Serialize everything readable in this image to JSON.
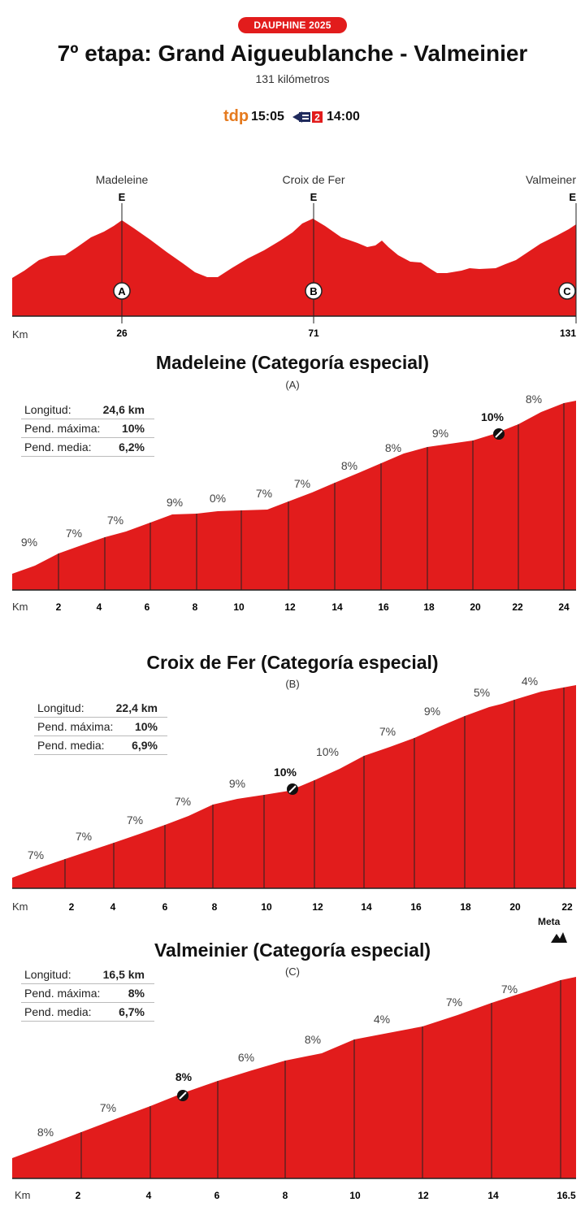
{
  "header": {
    "badge": "DAUPHINE 2025",
    "title": "7º etapa: Grand Aigueublanche - Valmeinier",
    "subtitle": "131 kilómetros",
    "tv": [
      {
        "channel": "tdp",
        "time": "15:05"
      },
      {
        "channel": "France 2",
        "badge_number": "2",
        "time": "14:00"
      }
    ]
  },
  "colors": {
    "fill": "#e21c1c",
    "accent": "#e57a1e",
    "dark": "#1f2a5c"
  },
  "overview": {
    "km_label": "Km",
    "climbs": [
      {
        "name": "Madeleine",
        "category": "E",
        "marker": "A",
        "km": "26"
      },
      {
        "name": "Croix de Fer",
        "category": "E",
        "marker": "B",
        "km": "71"
      },
      {
        "name": "Valmeiner",
        "category": "E",
        "marker": "C",
        "km": "131"
      }
    ]
  },
  "climbs": [
    {
      "title": "Madeleine (Categoría especial)",
      "letter": "(A)",
      "stats": [
        {
          "label": "Longitud:",
          "value": "24,6 km"
        },
        {
          "label": "Pend. máxima:",
          "value": "10%"
        },
        {
          "label": "Pend. media:",
          "value": "6,2%"
        }
      ],
      "km_label": "Km",
      "ticks": [
        "2",
        "4",
        "6",
        "8",
        "10",
        "12",
        "14",
        "16",
        "18",
        "20",
        "22",
        "24"
      ],
      "gradients": [
        "9%",
        "7%",
        "7%",
        "9%",
        "0%",
        "7%",
        "7%",
        "8%",
        "8%",
        "9%",
        "10%",
        "8%"
      ]
    },
    {
      "title": "Croix de Fer (Categoría especial)",
      "letter": "(B)",
      "stats": [
        {
          "label": "Longitud:",
          "value": "22,4 km"
        },
        {
          "label": "Pend. máxima:",
          "value": "10%"
        },
        {
          "label": "Pend. media:",
          "value": "6,9%"
        }
      ],
      "km_label": "Km",
      "ticks": [
        "2",
        "4",
        "6",
        "8",
        "10",
        "12",
        "14",
        "16",
        "18",
        "20",
        "22"
      ],
      "gradients": [
        "7%",
        "7%",
        "7%",
        "7%",
        "9%",
        "10%",
        "10%",
        "7%",
        "9%",
        "5%",
        "4%"
      ]
    },
    {
      "title": "Valmeinier (Categoría especial)",
      "letter": "(C)",
      "meta": "Meta",
      "stats": [
        {
          "label": "Longitud:",
          "value": "16,5 km"
        },
        {
          "label": "Pend. máxima:",
          "value": "8%"
        },
        {
          "label": "Pend. media:",
          "value": "6,7%"
        }
      ],
      "km_label": "Km",
      "ticks": [
        "2",
        "4",
        "6",
        "8",
        "10",
        "12",
        "14",
        "16.5"
      ],
      "gradients": [
        "8%",
        "7%",
        "8%",
        "6%",
        "8%",
        "4%",
        "7%",
        "7%"
      ]
    }
  ]
}
